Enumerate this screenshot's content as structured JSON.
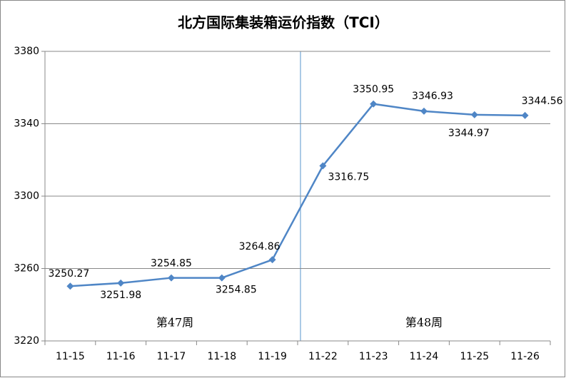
{
  "chart_data": {
    "type": "line",
    "title": "北方国际集装箱运价指数（TCI）",
    "categories": [
      "11-15",
      "11-16",
      "11-17",
      "11-18",
      "11-19",
      "11-22",
      "11-23",
      "11-24",
      "11-25",
      "11-26"
    ],
    "values": [
      3250.27,
      3251.98,
      3254.85,
      3254.85,
      3264.86,
      3316.75,
      3350.95,
      3346.93,
      3344.97,
      3344.56
    ],
    "color": "#4f86c6",
    "ylim": [
      3220,
      3380
    ],
    "yticks": [
      3220,
      3260,
      3300,
      3340,
      3380
    ],
    "grid": true,
    "annotations": [
      {
        "text": "第47周"
      },
      {
        "text": "第48周"
      }
    ]
  }
}
